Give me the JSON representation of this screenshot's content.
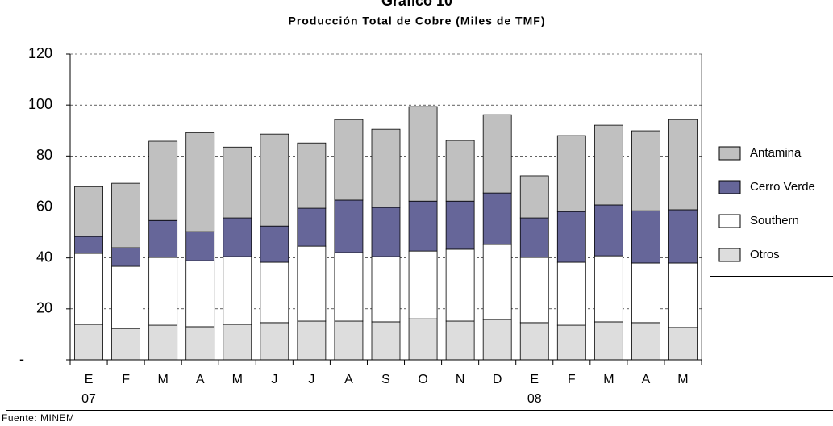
{
  "chart_data": {
    "type": "stacked_bar",
    "title": "Gráfico 10",
    "subtitle": "Producción Total de Cobre (Miles de TMF)",
    "categories": [
      "E",
      "F",
      "M",
      "A",
      "M",
      "J",
      "J",
      "A",
      "S",
      "O",
      "N",
      "D",
      "E",
      "F",
      "M",
      "A",
      "M"
    ],
    "year_labels": [
      "07",
      null,
      null,
      null,
      null,
      null,
      null,
      null,
      null,
      null,
      null,
      null,
      "08",
      null,
      null,
      null,
      null
    ],
    "series": [
      {
        "name": "Antamina",
        "color": "#c0c0c0",
        "values": [
          19.6,
          25.3,
          31.1,
          38.9,
          27.8,
          36.1,
          25.6,
          31.6,
          30.7,
          37.1,
          23.8,
          30.7,
          16.5,
          29.8,
          31.3,
          31.4,
          35.4
        ]
      },
      {
        "name": "Cerro Verde",
        "color": "#666699",
        "values": [
          6.6,
          7.3,
          14.5,
          11.4,
          15.2,
          14.2,
          14.9,
          20.6,
          19.3,
          19.6,
          18.9,
          20.2,
          15.5,
          19.9,
          20,
          20.5,
          20.9
        ]
      },
      {
        "name": "Southern",
        "color": "#ffffff",
        "values": [
          27.9,
          24.4,
          26.6,
          25.9,
          26.6,
          23.7,
          29.4,
          26.9,
          25.6,
          26.6,
          28.2,
          29.5,
          25.6,
          24.7,
          25.9,
          23.4,
          25.3
        ]
      },
      {
        "name": "Otros",
        "color": "#dddddd",
        "values": [
          13.9,
          12.3,
          13.6,
          13,
          13.9,
          14.6,
          15.2,
          15.2,
          14.9,
          16.1,
          15.2,
          15.8,
          14.6,
          13.6,
          14.9,
          14.6,
          12.7
        ]
      }
    ],
    "ylim": [
      0,
      120
    ],
    "yticks": [
      {
        "value": 0,
        "label": "-"
      },
      20,
      40,
      60,
      80,
      100,
      120
    ],
    "grid": true,
    "legend": "right",
    "source": "Fuente: MINEM"
  }
}
